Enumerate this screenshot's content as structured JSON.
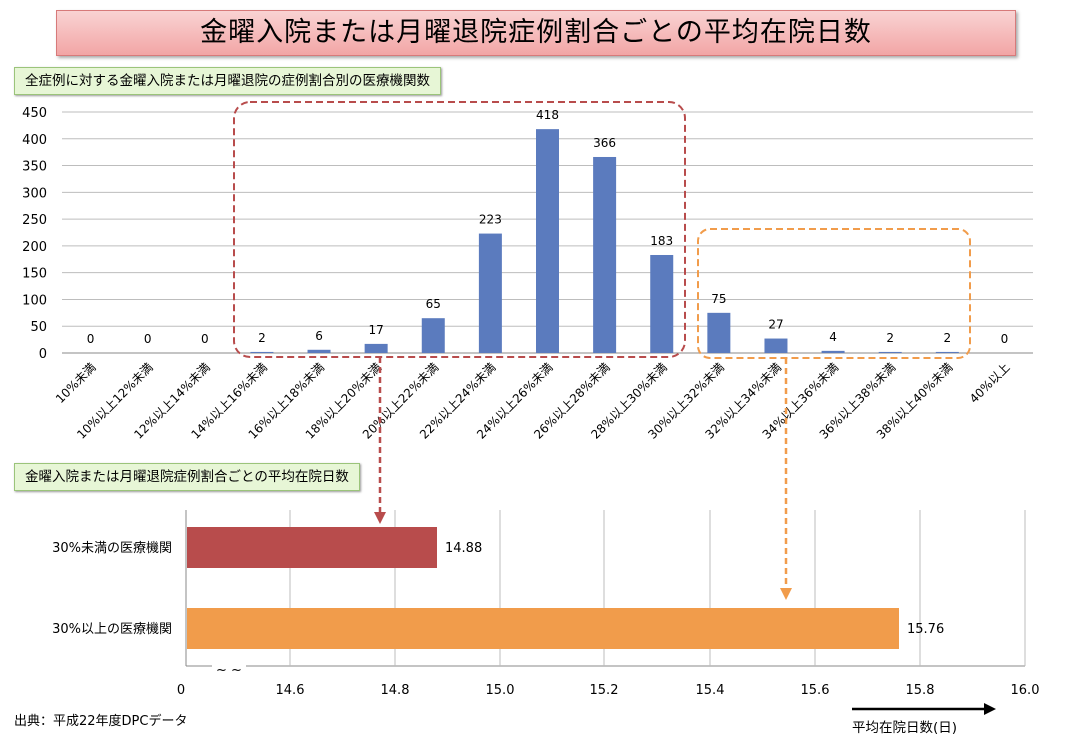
{
  "title": "金曜入院または月曜退院症例割合ごとの平均在院日数",
  "source": "出典：平成22年度DPCデータ",
  "chart_data": [
    {
      "type": "bar",
      "title": "全症例に対する金曜入院または月曜退院の症例割合別の医療機関数",
      "categories": [
        "10%未満",
        "10%以上12%未満",
        "12%以上14%未満",
        "14%以上16%未満",
        "16%以上18%未満",
        "18%以上20%未満",
        "20%以上22%未満",
        "22%以上24%未満",
        "24%以上26%未満",
        "26%以上28%未満",
        "28%以上30%未満",
        "30%以上32%未満",
        "32%以上34%未満",
        "34%以上36%未満",
        "36%以上38%未満",
        "38%以上40%未満",
        "40%以上"
      ],
      "values": [
        0,
        0,
        0,
        2,
        6,
        17,
        65,
        223,
        418,
        366,
        183,
        75,
        27,
        4,
        2,
        2,
        0
      ],
      "yticks": [
        "0",
        "50",
        "100",
        "150",
        "200",
        "250",
        "300",
        "350",
        "400",
        "450"
      ],
      "ylim": [
        0,
        450
      ],
      "grid": true,
      "color": "#5b7bbe",
      "highlight_colors": {
        "under30": "#b84c4c",
        "over30": "#f19c4b"
      }
    },
    {
      "type": "bar",
      "orientation": "horizontal",
      "title": "金曜入院または月曜退院症例割合ごとの平均在院日数",
      "categories": [
        "30%未満の医療機関",
        "30%以上の医療機関"
      ],
      "values": [
        14.88,
        15.76
      ],
      "value_labels": [
        "14.88",
        "15.76"
      ],
      "colors": [
        "#b84c4c",
        "#f19c4b"
      ],
      "xticks": [
        "0",
        "14.6",
        "14.8",
        "15.0",
        "15.2",
        "15.4",
        "15.6",
        "15.8",
        "16.0"
      ],
      "xlim": [
        14.4,
        16.0
      ],
      "axis_break": "~ ~",
      "xlabel": "平均在院日数(日)",
      "grid": true
    }
  ]
}
